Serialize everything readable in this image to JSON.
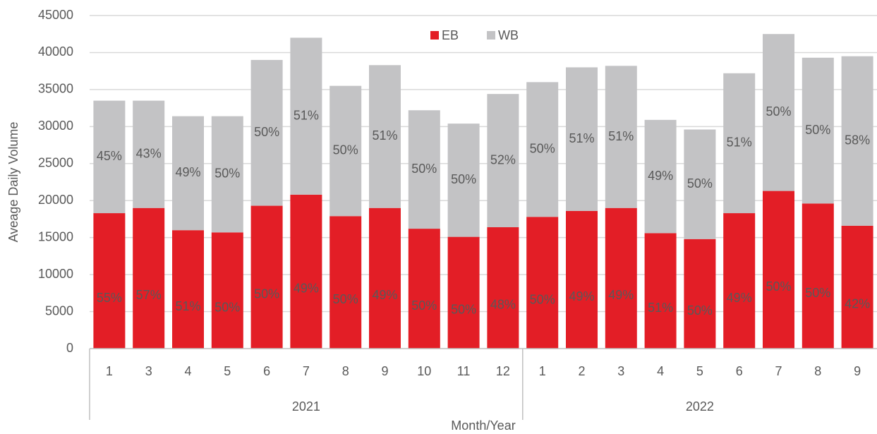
{
  "chart_data": {
    "type": "stacked_bar",
    "y_axis_label": "Aveage Daily Volume",
    "x_axis_label": "Month/Year",
    "categories": [
      "1",
      "3",
      "4",
      "5",
      "6",
      "7",
      "8",
      "9",
      "10",
      "11",
      "12",
      "1",
      "2",
      "3",
      "4",
      "5",
      "6",
      "7",
      "8",
      "9"
    ],
    "groups": [
      {
        "label": "2021",
        "start": 0,
        "end": 10
      },
      {
        "label": "2022",
        "start": 11,
        "end": 19
      }
    ],
    "series": [
      {
        "name": "EB",
        "color": "#e31e26",
        "values": [
          18300,
          19000,
          16000,
          15700,
          19300,
          20800,
          17900,
          19000,
          16200,
          15100,
          16400,
          17800,
          18600,
          19000,
          15600,
          14800,
          18300,
          21300,
          19600,
          16600
        ],
        "share_labels": [
          "55%",
          "57%",
          "51%",
          "50%",
          "50%",
          "49%",
          "50%",
          "49%",
          "50%",
          "50%",
          "48%",
          "50%",
          "49%",
          "49%",
          "51%",
          "50%",
          "49%",
          "50%",
          "50%",
          "42%"
        ]
      },
      {
        "name": "WB",
        "color": "#c3c3c5",
        "values": [
          15200,
          14500,
          15400,
          15700,
          19700,
          21200,
          17600,
          19300,
          16000,
          15300,
          18000,
          18200,
          19400,
          19200,
          15300,
          14800,
          18900,
          21200,
          19700,
          22900
        ],
        "share_labels": [
          "45%",
          "43%",
          "49%",
          "50%",
          "50%",
          "51%",
          "50%",
          "51%",
          "50%",
          "50%",
          "52%",
          "50%",
          "51%",
          "51%",
          "49%",
          "50%",
          "51%",
          "50%",
          "50%",
          "58%"
        ]
      }
    ],
    "ylim": [
      0,
      45000
    ],
    "yticks": [
      0,
      5000,
      10000,
      15000,
      20000,
      25000,
      30000,
      35000,
      40000,
      45000
    ],
    "grid": true,
    "legend": "top"
  }
}
